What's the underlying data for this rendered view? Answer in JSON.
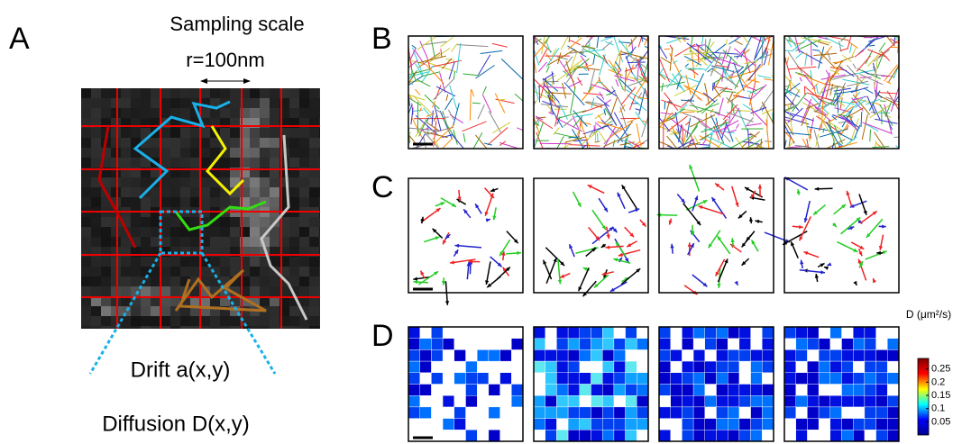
{
  "panels": {
    "a": "A",
    "b": "B",
    "c": "C",
    "d": "D"
  },
  "annotations": {
    "sampling_scale": "Sampling scale",
    "radius": "r=100nm",
    "drift": "Drift a(x,y)",
    "diffusion": "Diffusion D(x,y)"
  },
  "colorbar": {
    "label": "D (μm²/s)",
    "lim": [
      0,
      0.29
    ],
    "ticks": [
      0.05,
      0.1,
      0.15,
      0.2,
      0.25
    ]
  }
}
